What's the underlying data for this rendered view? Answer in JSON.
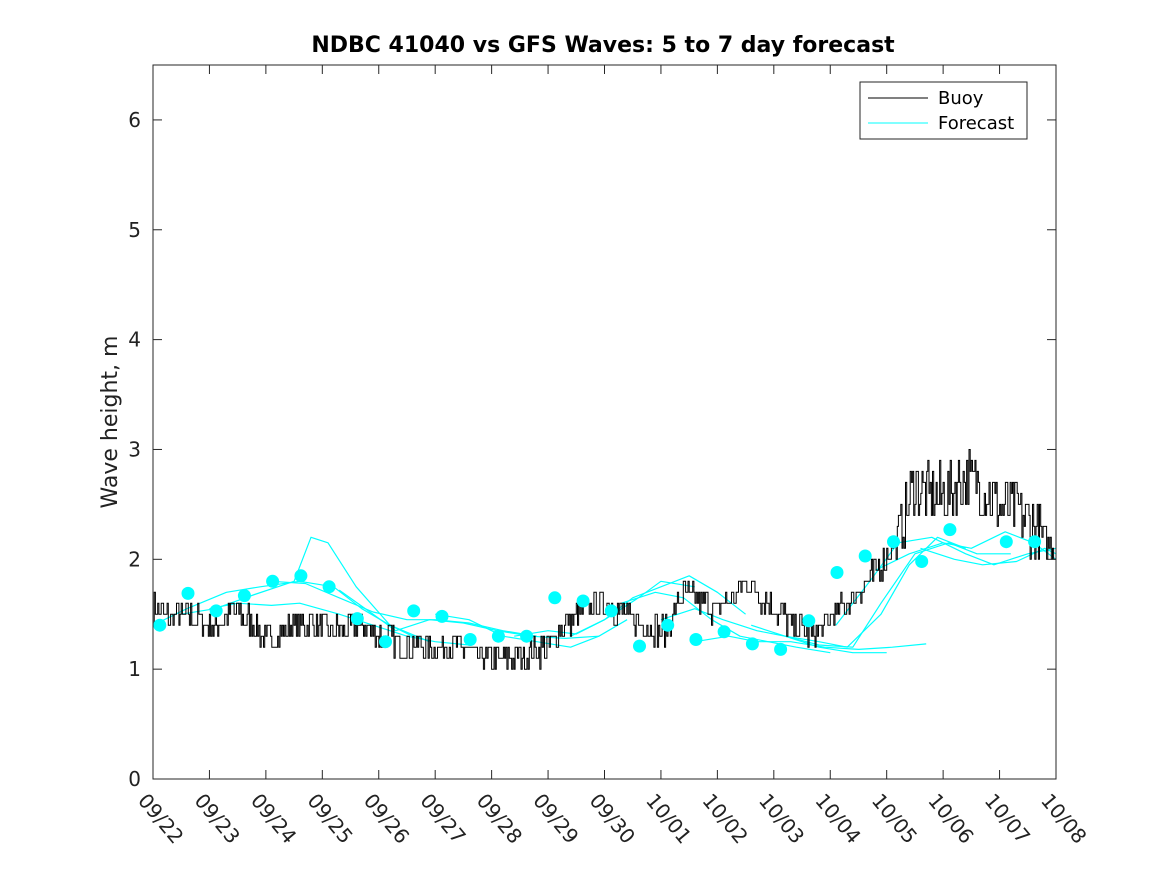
{
  "chart_data": {
    "type": "line",
    "title": "NDBC 41040 vs GFS Waves: 5 to 7 day forecast",
    "xlabel": "",
    "ylabel": "Wave height, m",
    "ylim": [
      0,
      6.5
    ],
    "yticks": [
      0,
      1,
      2,
      3,
      4,
      5,
      6
    ],
    "xlim": [
      0,
      16
    ],
    "xtick_labels": [
      "09/22",
      "09/23",
      "09/24",
      "09/25",
      "09/26",
      "09/27",
      "09/28",
      "09/29",
      "09/30",
      "10/01",
      "10/02",
      "10/03",
      "10/04",
      "10/05",
      "10/06",
      "10/07",
      "10/08"
    ],
    "legend": {
      "position": "top-right",
      "entries": [
        "Buoy",
        "Forecast"
      ]
    },
    "colors": {
      "buoy": "#000000",
      "forecast": "#00ffff",
      "axis": "#262626"
    },
    "buoy": {
      "name": "Buoy",
      "x": [
        0,
        0.3,
        0.6,
        0.9,
        1.1,
        1.4,
        1.7,
        2.0,
        2.2,
        2.5,
        2.8,
        3.1,
        3.4,
        3.7,
        4.0,
        4.3,
        4.6,
        4.9,
        5.2,
        5.5,
        5.8,
        6.1,
        6.4,
        6.7,
        7.0,
        7.3,
        7.6,
        7.9,
        8.2,
        8.5,
        8.8,
        9.1,
        9.4,
        9.7,
        10.0,
        10.2,
        10.5,
        10.8,
        11.1,
        11.4,
        11.7,
        12.0,
        12.3,
        12.6,
        12.9,
        13.2,
        13.5,
        13.8,
        14.1,
        14.4,
        14.7,
        15.0,
        15.3,
        15.6,
        15.8,
        16.0
      ],
      "values": [
        1.55,
        1.48,
        1.5,
        1.42,
        1.38,
        1.55,
        1.45,
        1.25,
        1.3,
        1.4,
        1.42,
        1.35,
        1.35,
        1.38,
        1.3,
        1.25,
        1.22,
        1.22,
        1.2,
        1.18,
        1.1,
        1.08,
        1.12,
        1.15,
        1.2,
        1.42,
        1.5,
        1.6,
        1.55,
        1.45,
        1.38,
        1.35,
        1.7,
        1.6,
        1.55,
        1.62,
        1.8,
        1.65,
        1.5,
        1.38,
        1.3,
        1.45,
        1.6,
        1.75,
        1.95,
        2.2,
        2.7,
        2.55,
        2.6,
        2.75,
        2.65,
        2.5,
        2.45,
        2.3,
        2.15,
        2.05
      ],
      "amplitude": 0.13
    },
    "forecast_series": [
      {
        "x": [
          0,
          0.6,
          1.3,
          1.9,
          2.6,
          3.2,
          3.7,
          4.2,
          4.6
        ],
        "values": [
          1.4,
          1.55,
          1.7,
          1.75,
          1.8,
          1.75,
          1.55,
          1.4,
          1.3
        ]
      },
      {
        "x": [
          0.5,
          1.1,
          1.8,
          2.5,
          2.8,
          3.1,
          3.6,
          4.2,
          4.9
        ],
        "values": [
          1.5,
          1.55,
          1.68,
          1.8,
          2.2,
          2.15,
          1.75,
          1.4,
          1.25
        ]
      },
      {
        "x": [
          1.0,
          1.5,
          2.1,
          2.6,
          3.3,
          3.9,
          4.5,
          5.0,
          5.6
        ],
        "values": [
          1.55,
          1.6,
          1.58,
          1.6,
          1.5,
          1.4,
          1.3,
          1.25,
          1.22
        ]
      },
      {
        "x": [
          2.1,
          2.7,
          3.3,
          3.9,
          4.5,
          5.0,
          5.6,
          6.2,
          6.8
        ],
        "values": [
          1.8,
          1.78,
          1.65,
          1.52,
          1.45,
          1.45,
          1.42,
          1.35,
          1.3
        ]
      },
      {
        "x": [
          3.3,
          3.9,
          4.3,
          4.9,
          5.5,
          6.1,
          6.7,
          7.3,
          7.9
        ],
        "values": [
          1.72,
          1.5,
          1.35,
          1.45,
          1.42,
          1.35,
          1.3,
          1.28,
          1.3
        ]
      },
      {
        "x": [
          5.0,
          5.6,
          6.2,
          6.8,
          7.4,
          7.9,
          8.4
        ],
        "values": [
          1.5,
          1.45,
          1.3,
          1.25,
          1.2,
          1.3,
          1.45
        ]
      },
      {
        "x": [
          6.4,
          7.0,
          7.5,
          8.0,
          8.6,
          9.0,
          9.6
        ],
        "values": [
          1.3,
          1.35,
          1.32,
          1.45,
          1.65,
          1.8,
          1.75
        ]
      },
      {
        "x": [
          7.4,
          8.0,
          8.5,
          9.0,
          9.5,
          10.0,
          10.5
        ],
        "values": [
          1.3,
          1.45,
          1.65,
          1.75,
          1.85,
          1.7,
          1.5
        ]
      },
      {
        "x": [
          8.3,
          8.9,
          9.4,
          9.9,
          10.4,
          10.9,
          11.4,
          12.0
        ],
        "values": [
          1.6,
          1.7,
          1.65,
          1.45,
          1.3,
          1.25,
          1.2,
          1.15
        ]
      },
      {
        "x": [
          9.0,
          9.6,
          10.1,
          10.7,
          11.2,
          11.8,
          12.4,
          13.0
        ],
        "values": [
          1.45,
          1.55,
          1.45,
          1.35,
          1.3,
          1.2,
          1.15,
          1.15
        ]
      },
      {
        "x": [
          9.6,
          10.2,
          10.7,
          11.3,
          11.9,
          12.5,
          13.1,
          13.7
        ],
        "values": [
          1.25,
          1.3,
          1.25,
          1.25,
          1.2,
          1.18,
          1.2,
          1.23
        ]
      },
      {
        "x": [
          10.6,
          11.2,
          11.8,
          12.3,
          12.9,
          13.4,
          13.9,
          14.4
        ],
        "values": [
          1.4,
          1.3,
          1.25,
          1.2,
          1.5,
          1.95,
          2.2,
          2.1
        ]
      },
      {
        "x": [
          11.2,
          11.8,
          12.4,
          12.9,
          13.5,
          14.1,
          14.6,
          15.2
        ],
        "values": [
          1.3,
          1.22,
          1.2,
          1.6,
          2.05,
          2.15,
          2.05,
          2.05
        ]
      },
      {
        "x": [
          12.1,
          12.7,
          13.2,
          13.8,
          14.4,
          14.9,
          15.5,
          16.0
        ],
        "values": [
          1.4,
          1.8,
          2.15,
          2.2,
          2.05,
          1.95,
          2.05,
          2.1
        ]
      },
      {
        "x": [
          12.8,
          13.4,
          14.0,
          14.5,
          15.1,
          15.6,
          16.0
        ],
        "values": [
          1.9,
          2.05,
          2.15,
          2.1,
          2.25,
          2.15,
          2.0
        ]
      },
      {
        "x": [
          13.6,
          14.2,
          14.7,
          15.3,
          15.8,
          16.0
        ],
        "values": [
          2.1,
          2.0,
          1.95,
          1.98,
          2.1,
          2.05
        ]
      }
    ],
    "forecast_markers": {
      "x": [
        0.12,
        0.62,
        1.12,
        1.62,
        2.12,
        2.62,
        3.12,
        3.62,
        4.12,
        4.62,
        5.12,
        5.62,
        6.12,
        6.62,
        7.12,
        7.62,
        8.12,
        8.62,
        9.12,
        9.62,
        10.12,
        10.62,
        11.12,
        11.62,
        12.12,
        12.62,
        13.12,
        13.62,
        14.12,
        15.12,
        15.62
      ],
      "values": [
        1.4,
        1.69,
        1.53,
        1.67,
        1.8,
        1.85,
        1.75,
        1.46,
        1.25,
        1.53,
        1.48,
        1.27,
        1.3,
        1.3,
        1.65,
        1.62,
        1.53,
        1.21,
        1.4,
        1.27,
        1.34,
        1.23,
        1.18,
        1.44,
        1.88,
        2.03,
        2.16,
        1.98,
        2.27,
        2.16,
        2.16
      ]
    }
  }
}
